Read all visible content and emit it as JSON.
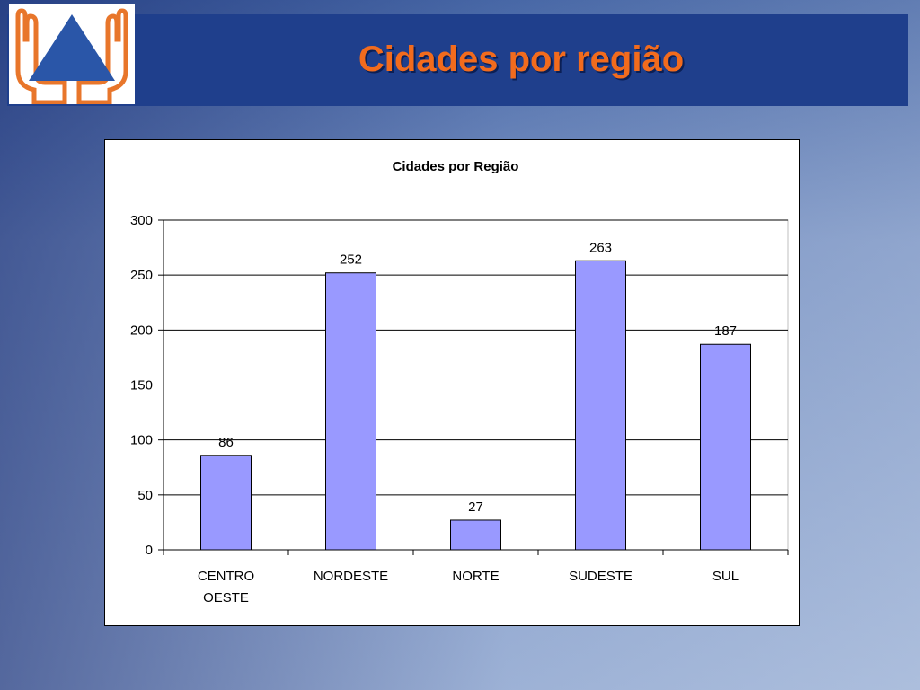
{
  "slide": {
    "title": "Cidades por região"
  },
  "colors": {
    "header_band": "#1f3f8c",
    "title_text": "#f26b1d",
    "bar_fill": "#9999ff",
    "logo_orange": "#e8762b",
    "logo_blue": "#2a56a8"
  },
  "logo": {
    "icon": "civil-defense-hands-triangle-icon"
  },
  "chart_data": {
    "type": "bar",
    "title": "Cidades por Região",
    "categories": [
      [
        "CENTRO",
        "OESTE"
      ],
      [
        "NORDESTE"
      ],
      [
        "NORTE"
      ],
      [
        "SUDESTE"
      ],
      [
        "SUL"
      ]
    ],
    "values": [
      86,
      252,
      27,
      263,
      187
    ],
    "data_labels": [
      "86",
      "252",
      "27",
      "263",
      "187"
    ],
    "ylim": [
      0,
      300
    ],
    "yticks": [
      0,
      50,
      100,
      150,
      200,
      250,
      300
    ],
    "xlabel": "",
    "ylabel": "",
    "grid": true,
    "legend": "none"
  }
}
